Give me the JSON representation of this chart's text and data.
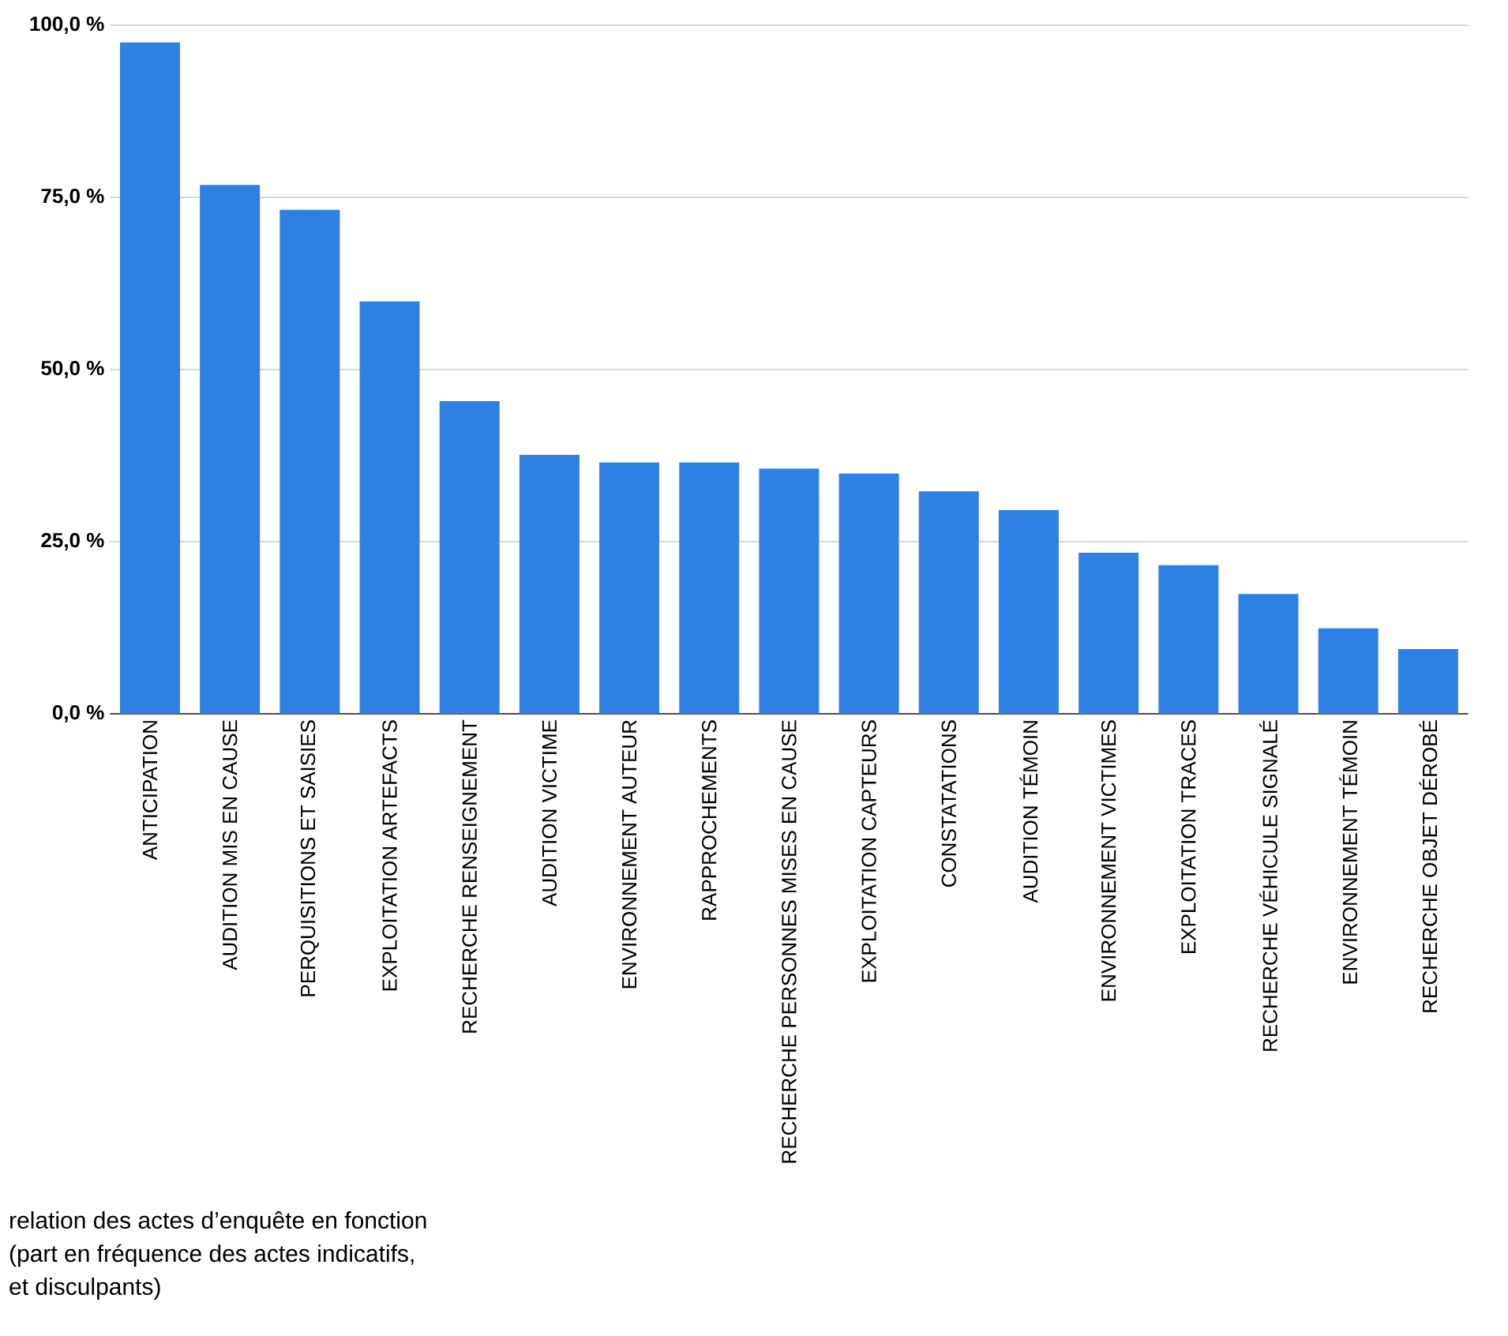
{
  "chart_data": {
    "type": "bar",
    "categories": [
      "ANTICIPATION",
      "AUDITION MIS EN CAUSE",
      "PERQUISITIONS ET SAISIES",
      "EXPLOITATION ARTEFACTS",
      "RECHERCHE RENSEIGNEMENT",
      "AUDITION VICTIME",
      "ENVIRONNEMENT AUTEUR",
      "RAPPROCHEMENTS",
      "RECHERCHE PERSONNES MISES EN CAUSE",
      "EXPLOITATION CAPTEURS",
      "CONSTATATIONS",
      "AUDITION TÉMOIN",
      "ENVIRONNEMENT VICTIMES",
      "EXPLOITATION TRACES",
      "RECHERCHE VÉHICULE SIGNALÉ",
      "ENVIRONNEMENT TÉMOIN",
      "RECHERCHE OBJET DÉROBÉ"
    ],
    "values": [
      97.5,
      76.8,
      73.2,
      59.9,
      45.4,
      37.6,
      36.5,
      36.5,
      35.6,
      34.9,
      32.3,
      29.6,
      23.4,
      21.6,
      17.4,
      12.4,
      9.4
    ],
    "color": "#2f80e3",
    "ylim": [
      0,
      100
    ],
    "yticks": [
      {
        "value": 0,
        "label": "0,0 %"
      },
      {
        "value": 25,
        "label": "25,0 %"
      },
      {
        "value": 50,
        "label": "50,0 %"
      },
      {
        "value": 75,
        "label": "75,0 %"
      },
      {
        "value": 100,
        "label": "100,0 %"
      }
    ],
    "grid": "y",
    "annotations": [
      "relation des actes d’enquête en fonction",
      "(part en fréquence des actes indicatifs,",
      "et disculpants)"
    ]
  }
}
